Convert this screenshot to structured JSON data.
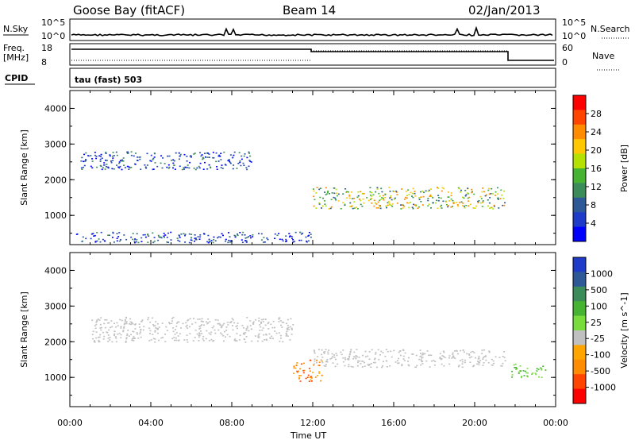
{
  "header": {
    "station": "Goose Bay (fitACF)",
    "beam": "Beam 14",
    "date": "02/Jan/2013"
  },
  "top_panels": {
    "nsky_label": "N.Sky",
    "nsearch_label": "N.Search",
    "nsky_ticks": [
      "10^5",
      "10^0"
    ],
    "nsearch_ticks": [
      "10^5",
      "10^0"
    ],
    "freq_label": "Freq.",
    "freq_unit": "[MHz]",
    "freq_ticks": [
      "18",
      "8"
    ],
    "nave_label": "Nave",
    "nave_ticks": [
      "60",
      "0"
    ],
    "cpid_label": "CPID",
    "cpid_value": "tau (fast) 503"
  },
  "colors": {
    "scatter_blue": "#2040c0",
    "ground_grey": "#c0c0c0"
  },
  "chart_data": [
    {
      "type": "heatmap",
      "title": "",
      "xlabel": "",
      "ylabel": "Slant Range [km]",
      "x_ticks": [
        "00:00",
        "04:00",
        "08:00",
        "12:00",
        "16:00",
        "20:00",
        "00:00"
      ],
      "y_ticks": [
        1000,
        2000,
        3000,
        4000
      ],
      "xlim_hours": [
        0,
        24
      ],
      "ylim": [
        180,
        4500
      ],
      "colorbar": {
        "label": "Power [dB]",
        "ticks": [
          "28",
          "24",
          "20",
          "16",
          "12",
          "8",
          "4"
        ],
        "colors": [
          "#ff0000",
          "#ff4500",
          "#ff8c00",
          "#ffc800",
          "#b4e100",
          "#46b432",
          "#3c8c5a",
          "#2d5a96",
          "#1e3cc8",
          "#0000ff"
        ]
      },
      "regions": [
        {
          "name": "scatter-band",
          "t": [
            0.5,
            9.0
          ],
          "r": [
            2300,
            2800
          ],
          "level": "low"
        },
        {
          "name": "strong-band",
          "t": [
            12.0,
            21.5
          ],
          "r": [
            1200,
            1800
          ],
          "level": "high"
        },
        {
          "name": "near-range",
          "t": [
            0.2,
            12.0
          ],
          "r": [
            250,
            550
          ],
          "level": "low"
        }
      ]
    },
    {
      "type": "heatmap",
      "title": "",
      "xlabel": "Time UT",
      "ylabel": "Slant Range [km]",
      "x_ticks": [
        "00:00",
        "04:00",
        "08:00",
        "12:00",
        "16:00",
        "20:00",
        "00:00"
      ],
      "y_ticks": [
        1000,
        2000,
        3000,
        4000
      ],
      "xlim_hours": [
        0,
        24
      ],
      "ylim": [
        180,
        4500
      ],
      "colorbar": {
        "label": "Velocity [m s^-1]",
        "ticks": [
          "1000",
          "500",
          "100",
          "25",
          "-25",
          "-100",
          "-500",
          "-1000"
        ],
        "colors": [
          "#1e3cc8",
          "#2d5a96",
          "#3c8c5a",
          "#46b432",
          "#78dc3c",
          "#c0c0c0",
          "#ffa500",
          "#ff8c00",
          "#ff4500",
          "#ff0000"
        ]
      },
      "regions": [
        {
          "name": "ground-scatter",
          "t": [
            1.0,
            11.0
          ],
          "r": [
            2000,
            2700
          ],
          "level": "grey"
        },
        {
          "name": "ground-scatter-2",
          "t": [
            12.0,
            21.5
          ],
          "r": [
            1300,
            1800
          ],
          "level": "grey"
        },
        {
          "name": "negative-velocity",
          "t": [
            11.0,
            12.5
          ],
          "r": [
            900,
            1500
          ],
          "level": "orange"
        },
        {
          "name": "positive-velocity",
          "t": [
            21.8,
            23.5
          ],
          "r": [
            1000,
            1400
          ],
          "level": "green"
        }
      ]
    }
  ]
}
